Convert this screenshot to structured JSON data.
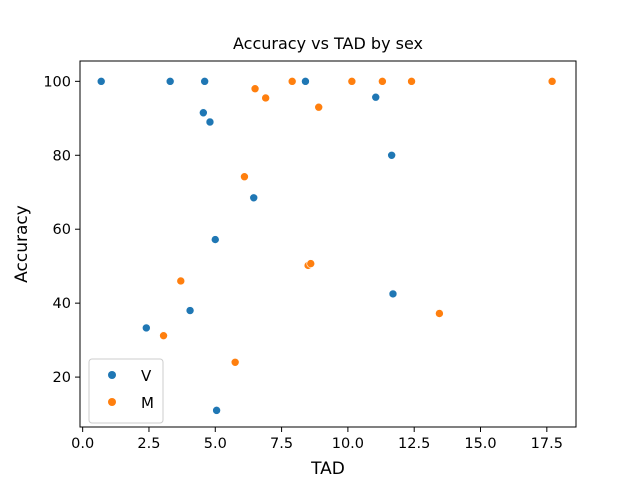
{
  "chart_data": {
    "type": "scatter",
    "title": "Accuracy vs TAD by sex",
    "xlabel": "TAD",
    "ylabel": "Accuracy",
    "xlim": [
      -0.1,
      18.6
    ],
    "ylim": [
      6.5,
      105.5
    ],
    "xticks": [
      0.0,
      2.5,
      5.0,
      7.5,
      10.0,
      12.5,
      15.0,
      17.5
    ],
    "xtick_labels": [
      "0.0",
      "2.5",
      "5.0",
      "7.5",
      "10.0",
      "12.5",
      "15.0",
      "17.5"
    ],
    "yticks": [
      20,
      40,
      60,
      80,
      100
    ],
    "ytick_labels": [
      "20",
      "40",
      "60",
      "80",
      "100"
    ],
    "grid": false,
    "legend_position": "lower-left",
    "series": [
      {
        "name": "V",
        "color": "#1f77b4",
        "points": [
          {
            "x": 0.7,
            "y": 100
          },
          {
            "x": 3.3,
            "y": 100
          },
          {
            "x": 4.6,
            "y": 100
          },
          {
            "x": 8.4,
            "y": 100
          },
          {
            "x": 4.55,
            "y": 91.5
          },
          {
            "x": 4.8,
            "y": 89
          },
          {
            "x": 11.05,
            "y": 95.7
          },
          {
            "x": 11.65,
            "y": 80
          },
          {
            "x": 6.45,
            "y": 68.5
          },
          {
            "x": 5.0,
            "y": 57.2
          },
          {
            "x": 11.7,
            "y": 42.5
          },
          {
            "x": 4.05,
            "y": 38
          },
          {
            "x": 2.4,
            "y": 33.3
          },
          {
            "x": 5.05,
            "y": 11
          }
        ]
      },
      {
        "name": "M",
        "color": "#ff7f0e",
        "points": [
          {
            "x": 7.9,
            "y": 100
          },
          {
            "x": 10.15,
            "y": 100
          },
          {
            "x": 11.3,
            "y": 100
          },
          {
            "x": 12.4,
            "y": 100
          },
          {
            "x": 17.7,
            "y": 100
          },
          {
            "x": 6.5,
            "y": 98
          },
          {
            "x": 6.9,
            "y": 95.5
          },
          {
            "x": 8.9,
            "y": 93
          },
          {
            "x": 6.1,
            "y": 74.2
          },
          {
            "x": 8.5,
            "y": 50.2
          },
          {
            "x": 8.6,
            "y": 50.7
          },
          {
            "x": 3.7,
            "y": 46
          },
          {
            "x": 13.45,
            "y": 37.2
          },
          {
            "x": 3.05,
            "y": 31.2
          },
          {
            "x": 5.75,
            "y": 24
          }
        ]
      }
    ]
  }
}
